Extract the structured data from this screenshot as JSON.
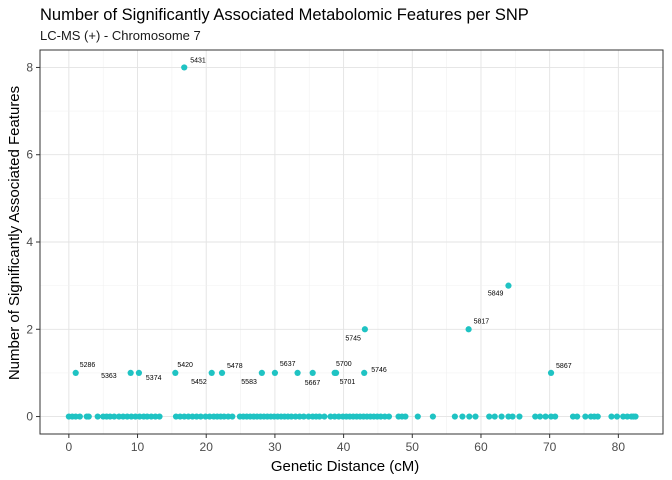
{
  "chart_data": {
    "type": "scatter",
    "title": "Number of Significantly Associated Metabolomic Features per SNP",
    "subtitle": "LC-MS (+) - Chromosome 7",
    "xlabel": "Genetic Distance (cM)",
    "ylabel": "Number of Significantly Associated Features",
    "xlim": [
      -4.2,
      86.5
    ],
    "ylim": [
      -0.4,
      8.4
    ],
    "x_ticks": [
      0,
      10,
      20,
      30,
      40,
      50,
      60,
      70,
      80
    ],
    "y_ticks": [
      0,
      2,
      4,
      6,
      8
    ],
    "grid": true,
    "point_color": "#1fc3c3",
    "labeled_points": [
      {
        "x": 1.0,
        "y": 1,
        "label": "5286"
      },
      {
        "x": 9.0,
        "y": 1,
        "label": "5363"
      },
      {
        "x": 10.2,
        "y": 1,
        "label": "5374"
      },
      {
        "x": 15.5,
        "y": 1,
        "label": "5420"
      },
      {
        "x": 16.8,
        "y": 8,
        "label": "5431"
      },
      {
        "x": 20.8,
        "y": 1,
        "label": "5452"
      },
      {
        "x": 22.3,
        "y": 1,
        "label": "5478"
      },
      {
        "x": 28.1,
        "y": 1,
        "label": "5583"
      },
      {
        "x": 30.0,
        "y": 1,
        "label": "5637"
      },
      {
        "x": 35.5,
        "y": 1,
        "label": "5667"
      },
      {
        "x": 38.9,
        "y": 1,
        "label": "5700"
      },
      {
        "x": 38.7,
        "y": 1,
        "label": "5701"
      },
      {
        "x": 43.1,
        "y": 2,
        "label": "5745"
      },
      {
        "x": 43.0,
        "y": 1,
        "label": "5746"
      },
      {
        "x": 58.2,
        "y": 2,
        "label": "5817"
      },
      {
        "x": 64.0,
        "y": 3,
        "label": "5849"
      },
      {
        "x": 70.2,
        "y": 1,
        "label": "5867"
      }
    ],
    "unlabeled_points": [
      {
        "x": 33.3,
        "y": 1
      }
    ],
    "zero_points_x": [
      0.0,
      0.5,
      1.0,
      1.6,
      2.6,
      2.9,
      4.2,
      5.0,
      5.5,
      6.0,
      6.6,
      7.3,
      7.9,
      8.5,
      9.1,
      9.7,
      10.3,
      10.9,
      11.4,
      12.0,
      12.6,
      13.2,
      15.6,
      16.2,
      16.8,
      17.4,
      18.0,
      18.6,
      19.2,
      19.9,
      20.5,
      21.1,
      21.6,
      22.1,
      22.6,
      23.2,
      23.8,
      24.9,
      25.4,
      25.9,
      26.4,
      26.9,
      27.4,
      27.9,
      28.4,
      28.9,
      29.4,
      29.9,
      30.4,
      30.9,
      31.4,
      31.9,
      32.4,
      33.0,
      33.6,
      34.2,
      34.9,
      35.5,
      36.0,
      36.5,
      37.2,
      38.1,
      38.7,
      39.3,
      39.9,
      40.4,
      40.9,
      41.4,
      41.9,
      42.4,
      42.9,
      43.4,
      43.9,
      44.4,
      44.9,
      45.4,
      46.0,
      46.6,
      48.0,
      48.5,
      49.0,
      50.8,
      53.0,
      56.2,
      57.3,
      58.3,
      59.2,
      61.2,
      62.0,
      63.0,
      64.0,
      64.6,
      65.6,
      67.9,
      68.6,
      69.4,
      70.2,
      70.8,
      73.4,
      74.0,
      75.2,
      76.0,
      76.5,
      77.0,
      79.0,
      79.8,
      80.7,
      81.3,
      81.9,
      82.2,
      82.5
    ]
  }
}
